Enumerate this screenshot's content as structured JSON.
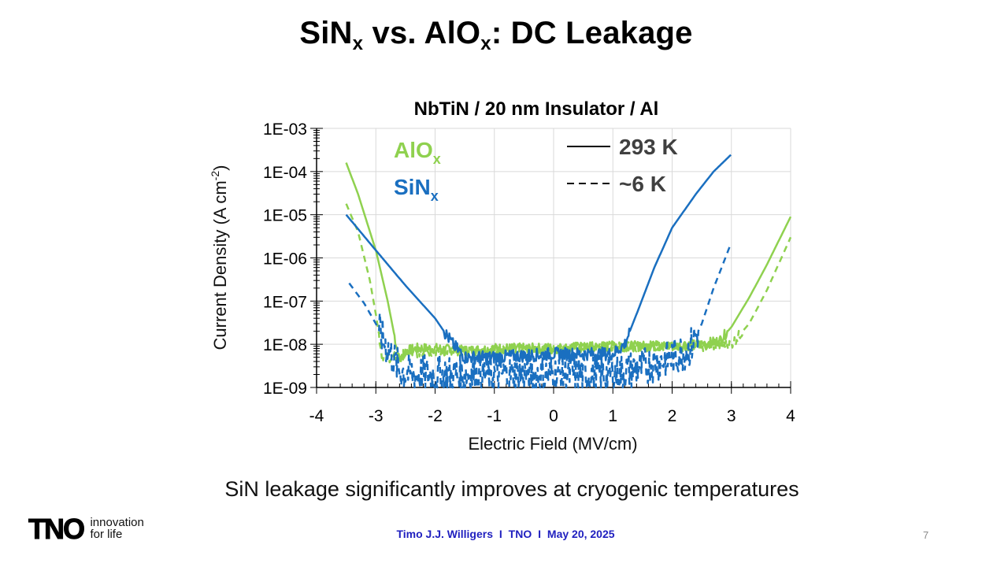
{
  "slide": {
    "title_a": "SiN",
    "title_a_sub": "x",
    "title_vs": " vs. AlO",
    "title_b_sub": "x",
    "title_rest": ": DC Leakage",
    "caption": "SiN leakage significantly improves at cryogenic temperatures",
    "footer_author": "Timo J.J. Willigers",
    "footer_sep1": "I",
    "footer_org": "TNO",
    "footer_sep2": "I",
    "footer_date": "May 20, 2025",
    "page_number": "7",
    "logo_mark": "TNO",
    "logo_tagline_1": "innovation",
    "logo_tagline_2": "for life"
  },
  "chart_data": {
    "type": "line",
    "title": "NbTiN / 20 nm Insulator / Al",
    "xlabel": "Electric Field (MV/cm)",
    "ylabel_main": "Current Density (A cm",
    "ylabel_sup": "-2",
    "ylabel_end": ")",
    "xlim": [
      -4,
      4
    ],
    "xticks": [
      "-4",
      "-3",
      "-2",
      "-1",
      "0",
      "1",
      "2",
      "3",
      "4"
    ],
    "ylim": [
      1e-09,
      0.001
    ],
    "yscale": "log",
    "yticks": [
      "1E-09",
      "1E-08",
      "1E-07",
      "1E-06",
      "1E-05",
      "1E-04",
      "1E-03"
    ],
    "grid": true,
    "material_labels": [
      {
        "text": "AlO",
        "sub": "x",
        "color": "#8fd14f"
      },
      {
        "text": "SiN",
        "sub": "x",
        "color": "#1a6fc0"
      }
    ],
    "line_style_legend": [
      {
        "label": "293 K",
        "style": "solid"
      },
      {
        "label": "~6 K",
        "style": "dashed"
      }
    ],
    "colors": {
      "AlO": "#8fd14f",
      "SiN": "#1a6fc0",
      "grid": "#d9d9d9",
      "axis": "#000000"
    },
    "series": [
      {
        "material": "AlO",
        "temperature": "293 K",
        "style": "solid",
        "x": [
          -3.5,
          -3.3,
          -3.0,
          -2.8,
          -2.6,
          -2.5,
          -2.3,
          -2.0,
          -1.5,
          -1.0,
          0,
          1.0,
          2.0,
          2.5,
          2.8,
          3.0,
          3.3,
          3.6,
          4.0
        ],
        "y": [
          0.00016,
          3e-05,
          1.5e-06,
          1e-07,
          4e-09,
          7e-09,
          8e-09,
          8e-09,
          7e-09,
          8e-09,
          8e-09,
          9e-09,
          9e-09,
          1e-08,
          1.2e-08,
          2.5e-08,
          1.2e-07,
          7e-07,
          9e-06
        ],
        "noise": 0.12
      },
      {
        "material": "AlO",
        "temperature": "~6 K",
        "style": "dashed",
        "x": [
          -3.5,
          -3.3,
          -3.1,
          -3.0,
          -2.9,
          -2.85,
          -2.7,
          -2.5,
          -2.0,
          -1.0,
          0,
          1.0,
          2.0,
          2.5,
          3.0,
          3.3,
          3.6,
          4.0
        ],
        "y": [
          1.8e-05,
          4e-06,
          3e-07,
          5e-08,
          6e-09,
          5e-09,
          5e-09,
          6e-09,
          7e-09,
          7e-09,
          8e-09,
          9e-09,
          9e-09,
          9e-09,
          1e-08,
          3e-08,
          1.8e-07,
          3e-06
        ],
        "noise": 0.12
      },
      {
        "material": "SiN",
        "temperature": "293 K",
        "style": "solid",
        "x": [
          -3.5,
          -3.0,
          -2.5,
          -2.0,
          -1.7,
          -1.5,
          -1.0,
          0,
          1.0,
          1.2,
          1.4,
          1.7,
          2.0,
          2.4,
          2.7,
          3.0
        ],
        "y": [
          1e-05,
          1.5e-06,
          2.3e-07,
          4e-08,
          1e-08,
          5e-09,
          5e-09,
          6e-09,
          6e-09,
          1e-08,
          5e-08,
          6e-07,
          5e-06,
          3e-05,
          0.0001,
          0.00025
        ],
        "noise": 0.15
      },
      {
        "material": "SiN",
        "temperature": "~6 K",
        "style": "dashed",
        "x": [
          -3.45,
          -3.2,
          -3.0,
          -2.8,
          -2.6,
          -2.4,
          -2.2,
          -1.5,
          -1.0,
          0,
          1.0,
          1.5,
          2.0,
          2.3,
          2.5,
          2.7,
          3.0
        ],
        "y": [
          2.6e-07,
          9e-08,
          3e-08,
          8e-09,
          2.5e-09,
          2e-09,
          2e-09,
          2e-09,
          2e-09,
          2e-09,
          2e-09,
          3e-09,
          5e-09,
          8e-09,
          3e-08,
          2e-07,
          2.3e-06
        ],
        "noise": 0.45
      }
    ]
  }
}
